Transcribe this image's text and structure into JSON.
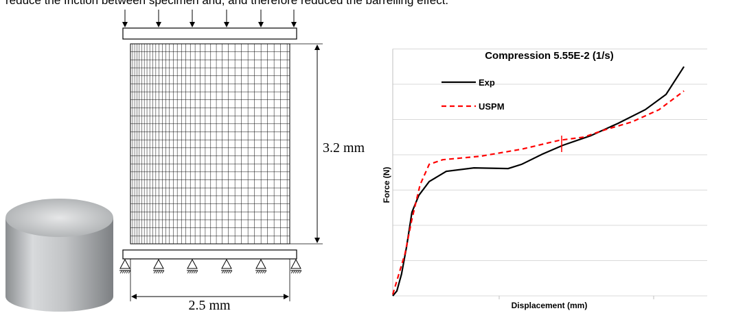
{
  "paper": {
    "text": "reduce the friction between specimen and, and therefore reduced the barrelling effect."
  },
  "diagram": {
    "height_label": "3.2 mm",
    "width_label": "2.5 mm"
  },
  "chart_data": {
    "type": "line",
    "title": "Compression 5.55E-2 (1/s)",
    "x_label": "Displacement (mm)",
    "y_label": "Force (N)",
    "xlim": [
      0,
      10
    ],
    "ylim": [
      0,
      7
    ],
    "yticks": [
      0,
      1,
      2,
      3,
      4,
      5,
      6,
      7
    ],
    "grid": true,
    "legend": "top-left",
    "series": [
      {
        "name": "Exp",
        "color": "#000000",
        "line_style": "solid",
        "x": [
          0,
          0.13,
          0.28,
          0.44,
          0.61,
          0.83,
          1.16,
          1.7,
          2.58,
          3.67,
          4.1,
          4.76,
          5.41,
          6.29,
          7.16,
          8.03,
          8.69,
          9.26
        ],
        "values": [
          0,
          0.14,
          0.62,
          1.4,
          2.37,
          2.85,
          3.24,
          3.53,
          3.63,
          3.61,
          3.73,
          4.02,
          4.27,
          4.54,
          4.89,
          5.28,
          5.71,
          6.5
        ]
      },
      {
        "name": "USPM",
        "color": "#ff0000",
        "line_style": "dashed",
        "x": [
          0,
          0.13,
          0.39,
          0.61,
          0.87,
          1.16,
          1.59,
          2.79,
          4.1,
          5.29,
          6.07,
          6.72,
          7.6,
          8.47,
          9.26
        ],
        "values": [
          0.04,
          0.43,
          1.2,
          2.17,
          3.15,
          3.73,
          3.86,
          3.96,
          4.16,
          4.41,
          4.5,
          4.7,
          4.93,
          5.28,
          5.81
        ]
      }
    ]
  }
}
